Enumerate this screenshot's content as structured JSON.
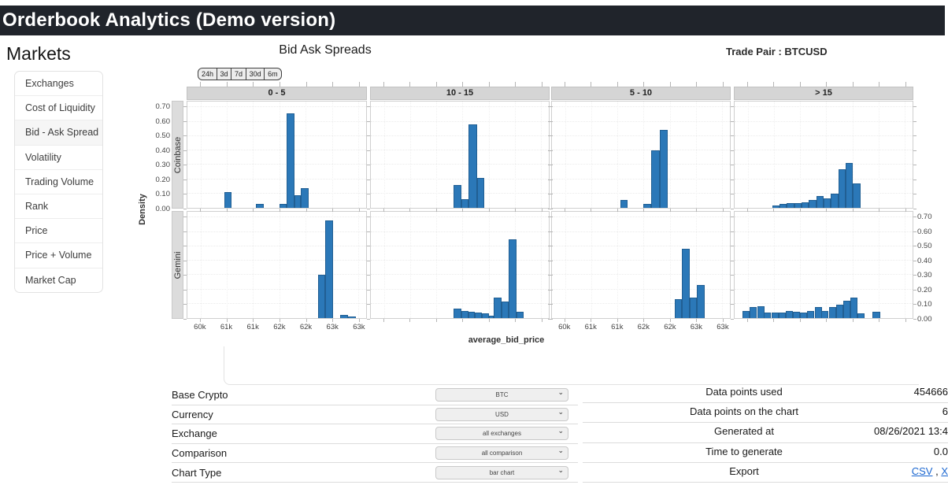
{
  "topbar": {
    "title": "Orderbook Analytics (Demo version)"
  },
  "sidebar": {
    "title": "Markets",
    "items": [
      {
        "label": "Exchanges",
        "active": false
      },
      {
        "label": "Cost of Liquidity",
        "active": false
      },
      {
        "label": "Bid - Ask Spread",
        "active": true
      },
      {
        "label": "Volatility",
        "active": false
      },
      {
        "label": "Trading Volume",
        "active": false
      },
      {
        "label": "Rank",
        "active": false
      },
      {
        "label": "Price",
        "active": false
      },
      {
        "label": "Price + Volume",
        "active": false
      },
      {
        "label": "Market Cap",
        "active": false
      }
    ]
  },
  "header": {
    "chart_title": "Bid Ask Spreads",
    "trade_pair": "Trade Pair : BTCUSD"
  },
  "range_buttons": [
    "24h",
    "3d",
    "7d",
    "30d",
    "6m"
  ],
  "chart_data": {
    "type": "bar",
    "subtype": "faceted-histogram-grid",
    "title": "Bid Ask Spreads",
    "xlabel": "average_bid_price",
    "ylabel": "Density",
    "x_unit": "USD thousands",
    "x_range": [
      59.75,
      63.15
    ],
    "y_range": [
      0,
      0.74
    ],
    "x_tick_values": [
      60,
      60.5,
      61,
      61.5,
      62,
      62.5,
      63
    ],
    "x_tick_labels": [
      "60k",
      "61k",
      "61k",
      "62k",
      "62k",
      "63k",
      "63k"
    ],
    "y_tick_values": [
      0,
      0.1,
      0.2,
      0.3,
      0.4,
      0.5,
      0.6,
      0.7
    ],
    "y_tick_labels": [
      "0.00",
      "0.10",
      "0.20",
      "0.30",
      "0.40",
      "0.50",
      "0.60",
      "0.70"
    ],
    "col_headers": [
      "0 - 5",
      "10 - 15",
      "5 - 10",
      "> 15"
    ],
    "row_headers": [
      "Coinbase",
      "Gemini"
    ],
    "bar_color": "#2b78b8",
    "facets": [
      {
        "row": "Coinbase",
        "col": "0 - 5",
        "bars": [
          [
            60.45,
            0.14,
            0.11
          ],
          [
            61.05,
            0.15,
            0.025
          ],
          [
            61.5,
            0.14,
            0.025
          ],
          [
            61.64,
            0.14,
            0.66
          ],
          [
            61.78,
            0.13,
            0.09
          ],
          [
            61.91,
            0.14,
            0.135
          ]
        ]
      },
      {
        "row": "Coinbase",
        "col": "10 - 15",
        "bars": [
          [
            61.33,
            0.15,
            0.16
          ],
          [
            61.48,
            0.14,
            0.06
          ],
          [
            61.62,
            0.16,
            0.58
          ],
          [
            61.78,
            0.14,
            0.21
          ]
        ]
      },
      {
        "row": "Coinbase",
        "col": "5 - 10",
        "bars": [
          [
            61.06,
            0.14,
            0.055
          ],
          [
            61.5,
            0.15,
            0.03
          ],
          [
            61.65,
            0.16,
            0.4
          ],
          [
            61.81,
            0.15,
            0.545
          ]
        ]
      },
      {
        "row": "Coinbase",
        "col": "> 15",
        "bars": [
          [
            60.47,
            0.14,
            0.015
          ],
          [
            60.61,
            0.14,
            0.03
          ],
          [
            60.75,
            0.14,
            0.035
          ],
          [
            60.89,
            0.14,
            0.035
          ],
          [
            61.03,
            0.14,
            0.04
          ],
          [
            61.17,
            0.14,
            0.055
          ],
          [
            61.31,
            0.14,
            0.085
          ],
          [
            61.45,
            0.14,
            0.065
          ],
          [
            61.59,
            0.14,
            0.1
          ],
          [
            61.73,
            0.14,
            0.27
          ],
          [
            61.87,
            0.14,
            0.31
          ],
          [
            62.01,
            0.14,
            0.17
          ]
        ]
      },
      {
        "row": "Gemini",
        "col": "0 - 5",
        "bars": [
          [
            62.23,
            0.14,
            0.3
          ],
          [
            62.37,
            0.15,
            0.68
          ],
          [
            62.66,
            0.15,
            0.02
          ],
          [
            62.81,
            0.15,
            0.012
          ]
        ]
      },
      {
        "row": "Gemini",
        "col": "10 - 15",
        "bars": [
          [
            61.33,
            0.15,
            0.065
          ],
          [
            61.48,
            0.13,
            0.05
          ],
          [
            61.61,
            0.13,
            0.045
          ],
          [
            61.74,
            0.13,
            0.04
          ],
          [
            61.87,
            0.13,
            0.035
          ],
          [
            62.0,
            0.1,
            0.015
          ],
          [
            62.1,
            0.14,
            0.14
          ],
          [
            62.24,
            0.14,
            0.115
          ],
          [
            62.38,
            0.15,
            0.55
          ],
          [
            62.53,
            0.14,
            0.045
          ]
        ]
      },
      {
        "row": "Gemini",
        "col": "5 - 10",
        "bars": [
          [
            62.09,
            0.14,
            0.13
          ],
          [
            62.23,
            0.15,
            0.48
          ],
          [
            62.38,
            0.14,
            0.14
          ],
          [
            62.52,
            0.15,
            0.23
          ]
        ]
      },
      {
        "row": "Gemini",
        "col": "> 15",
        "bars": [
          [
            59.9,
            0.137,
            0.05
          ],
          [
            60.04,
            0.137,
            0.075
          ],
          [
            60.18,
            0.137,
            0.085
          ],
          [
            60.31,
            0.137,
            0.04
          ],
          [
            60.45,
            0.137,
            0.04
          ],
          [
            60.59,
            0.137,
            0.04
          ],
          [
            60.73,
            0.137,
            0.05
          ],
          [
            60.86,
            0.137,
            0.045
          ],
          [
            61.0,
            0.137,
            0.04
          ],
          [
            61.14,
            0.137,
            0.05
          ],
          [
            61.28,
            0.137,
            0.075
          ],
          [
            61.41,
            0.137,
            0.05
          ],
          [
            61.55,
            0.137,
            0.075
          ],
          [
            61.69,
            0.137,
            0.095
          ],
          [
            61.83,
            0.137,
            0.12
          ],
          [
            61.96,
            0.137,
            0.14
          ],
          [
            62.1,
            0.137,
            0.035
          ],
          [
            62.39,
            0.14,
            0.045
          ]
        ]
      }
    ]
  },
  "form": {
    "rows": [
      {
        "label": "Base Crypto",
        "value": "BTC"
      },
      {
        "label": "Currency",
        "value": "USD"
      },
      {
        "label": "Exchange",
        "value": "all exchanges"
      },
      {
        "label": "Comparison",
        "value": "all comparison"
      },
      {
        "label": "Chart Type",
        "value": "bar chart"
      }
    ]
  },
  "stats": {
    "rows": [
      {
        "label": "Data points used",
        "value": "454666"
      },
      {
        "label": "Data points on the chart",
        "value": "6"
      },
      {
        "label": "Generated at",
        "value": "08/26/2021 13:4"
      },
      {
        "label": "Time to generate",
        "value": "0.0"
      }
    ],
    "export_label": "Export",
    "export_links": [
      "CSV",
      "X"
    ],
    "link_separator": " , ",
    "link_color": "#1a66d0"
  }
}
